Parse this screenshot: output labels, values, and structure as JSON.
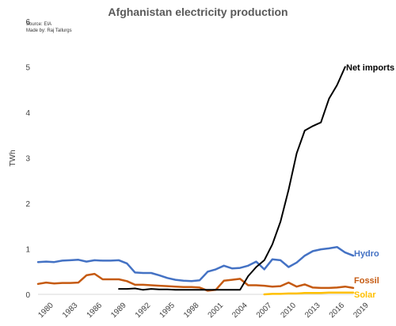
{
  "chart_data": {
    "type": "line",
    "title": "Afghanistan electricity production",
    "source": "Source: EIA",
    "credit": "Made by: Raj Tallurgs",
    "ylabel": "TWh",
    "xlabel": "",
    "ylim": [
      0,
      6
    ],
    "xlim": [
      1980,
      2019
    ],
    "y_ticks": [
      "0",
      "1",
      "2",
      "3",
      "4",
      "5",
      "6"
    ],
    "x_ticks": [
      "1980",
      "1983",
      "1986",
      "1989",
      "1992",
      "1995",
      "1998",
      "2001",
      "2004",
      "2007",
      "2010",
      "2013",
      "2016",
      "2019"
    ],
    "grid": false,
    "legend": "direct labels at line ends",
    "series": [
      {
        "name": "Hydro",
        "color": "#4472c4",
        "x": [
          1980,
          1981,
          1982,
          1983,
          1984,
          1985,
          1986,
          1987,
          1988,
          1989,
          1990,
          1991,
          1992,
          1993,
          1994,
          1995,
          1996,
          1997,
          1998,
          1999,
          2000,
          2001,
          2002,
          2003,
          2004,
          2005,
          2006,
          2007,
          2008,
          2009,
          2010,
          2011,
          2012,
          2013,
          2014,
          2015,
          2016,
          2017,
          2018,
          2019
        ],
        "values": [
          0.71,
          0.72,
          0.71,
          0.74,
          0.75,
          0.76,
          0.72,
          0.75,
          0.74,
          0.74,
          0.75,
          0.68,
          0.48,
          0.47,
          0.47,
          0.42,
          0.36,
          0.32,
          0.3,
          0.29,
          0.31,
          0.5,
          0.55,
          0.63,
          0.57,
          0.58,
          0.63,
          0.72,
          0.55,
          0.77,
          0.75,
          0.6,
          0.7,
          0.85,
          0.95,
          0.99,
          1.01,
          1.04,
          0.92,
          0.85
        ]
      },
      {
        "name": "Fossil",
        "color": "#c55a11",
        "x": [
          1980,
          1981,
          1982,
          1983,
          1984,
          1985,
          1986,
          1987,
          1988,
          1989,
          1990,
          1991,
          1992,
          1993,
          1994,
          1995,
          1996,
          1997,
          1998,
          1999,
          2000,
          2001,
          2002,
          2003,
          2004,
          2005,
          2006,
          2007,
          2008,
          2009,
          2010,
          2011,
          2012,
          2013,
          2014,
          2015,
          2016,
          2017,
          2018,
          2019
        ],
        "values": [
          0.23,
          0.26,
          0.24,
          0.25,
          0.25,
          0.26,
          0.42,
          0.45,
          0.33,
          0.33,
          0.33,
          0.29,
          0.21,
          0.21,
          0.2,
          0.19,
          0.18,
          0.17,
          0.16,
          0.16,
          0.15,
          0.08,
          0.1,
          0.3,
          0.32,
          0.34,
          0.2,
          0.2,
          0.19,
          0.17,
          0.18,
          0.26,
          0.17,
          0.22,
          0.15,
          0.14,
          0.14,
          0.15,
          0.17,
          0.14
        ]
      },
      {
        "name": "Net imports",
        "color": "#000000",
        "x": [
          1990,
          1991,
          1992,
          1993,
          1994,
          1995,
          1996,
          1997,
          1998,
          1999,
          2000,
          2001,
          2002,
          2003,
          2004,
          2005,
          2006,
          2007,
          2008,
          2009,
          2010,
          2011,
          2012,
          2013,
          2014,
          2015,
          2016,
          2017,
          2018
        ],
        "values": [
          0.12,
          0.12,
          0.13,
          0.1,
          0.12,
          0.11,
          0.11,
          0.1,
          0.1,
          0.1,
          0.1,
          0.1,
          0.1,
          0.1,
          0.1,
          0.1,
          0.4,
          0.6,
          0.75,
          1.1,
          1.6,
          2.3,
          3.1,
          3.6,
          3.7,
          3.78,
          4.3,
          4.6,
          5.0
        ]
      },
      {
        "name": "Solar",
        "color": "#ffc000",
        "x": [
          2008,
          2009,
          2010,
          2011,
          2012,
          2013,
          2014,
          2015,
          2016,
          2017,
          2018,
          2019
        ],
        "values": [
          0.0,
          0.01,
          0.01,
          0.02,
          0.02,
          0.03,
          0.03,
          0.03,
          0.04,
          0.04,
          0.04,
          0.04
        ]
      }
    ]
  }
}
